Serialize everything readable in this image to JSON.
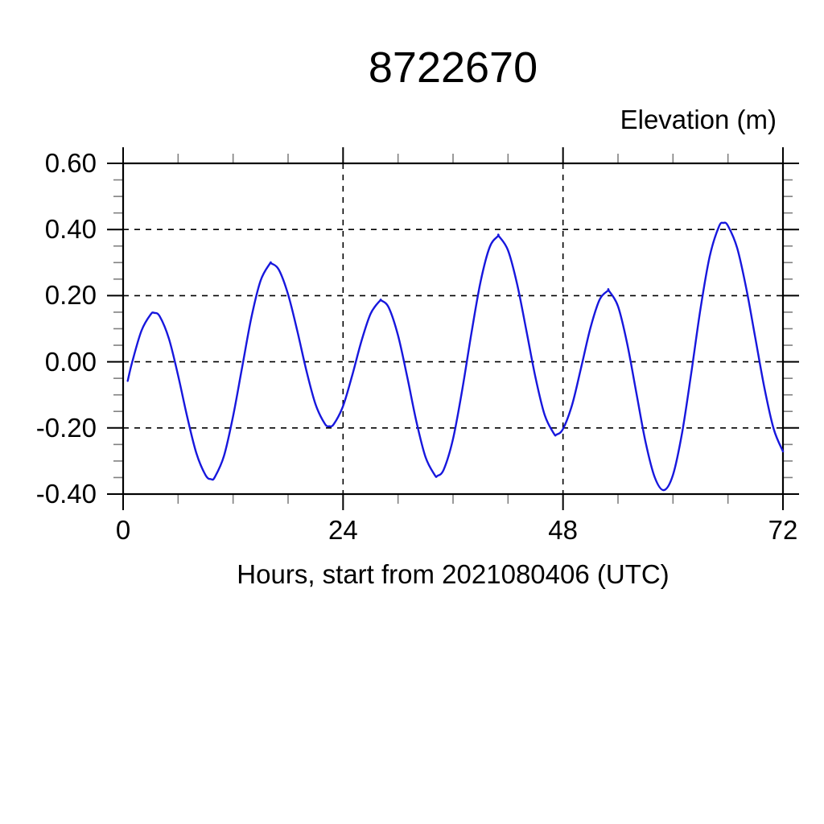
{
  "chart_data": {
    "type": "line",
    "title": "8722670",
    "y_axis_label": "Elevation (m)",
    "x_axis_label": "Hours, start from 2021080406 (UTC)",
    "xlim": [
      0,
      72
    ],
    "ylim": [
      -0.4,
      0.6
    ],
    "x_major_ticks": [
      0,
      24,
      48,
      72
    ],
    "x_tick_labels": [
      "0",
      "24",
      "48",
      "72"
    ],
    "x_minor_step": 6,
    "y_major_ticks": [
      0.6,
      0.4,
      0.2,
      0.0,
      -0.2,
      -0.4
    ],
    "y_tick_labels": [
      "0.60",
      "0.40",
      "0.20",
      "0.00",
      "-0.20",
      "-0.40"
    ],
    "y_minor_step": 0.05,
    "grid": "dashed lines at major ticks, full frame box, ticks point outward",
    "line_color": "#1717dd",
    "frame_color": "#000000",
    "background_color": "#ffffff",
    "series": [
      {
        "name": "elevation",
        "x": [
          0.5,
          1,
          2,
          3,
          3.4,
          4,
          5,
          6,
          7,
          8,
          9,
          9.6,
          10,
          11,
          12,
          13,
          14,
          15,
          16,
          16.2,
          17,
          18,
          19,
          20,
          21,
          22,
          22.5,
          23,
          24,
          25,
          26,
          27,
          28,
          28.2,
          29,
          30,
          31,
          32,
          33,
          34,
          34.3,
          35,
          36,
          37,
          38,
          39,
          40,
          40.9,
          41,
          42,
          43,
          44,
          45,
          46,
          47,
          47.3,
          48,
          49,
          50,
          51,
          52,
          52.9,
          53,
          54,
          55,
          56,
          57,
          58,
          59,
          60,
          61,
          62,
          63,
          64,
          65,
          65.5,
          66,
          67,
          68,
          69,
          70,
          71,
          72
        ],
        "y": [
          -0.058,
          0.0,
          0.094,
          0.143,
          0.148,
          0.137,
          0.07,
          -0.041,
          -0.167,
          -0.277,
          -0.343,
          -0.355,
          -0.349,
          -0.285,
          -0.164,
          -0.014,
          0.134,
          0.245,
          0.296,
          0.297,
          0.278,
          0.204,
          0.094,
          -0.027,
          -0.129,
          -0.187,
          -0.195,
          -0.188,
          -0.134,
          -0.041,
          0.062,
          0.145,
          0.184,
          0.185,
          0.163,
          0.079,
          -0.046,
          -0.18,
          -0.288,
          -0.342,
          -0.345,
          -0.325,
          -0.233,
          -0.085,
          0.086,
          0.242,
          0.347,
          0.38,
          0.38,
          0.337,
          0.234,
          0.095,
          -0.048,
          -0.161,
          -0.217,
          -0.22,
          -0.203,
          -0.129,
          -0.015,
          0.103,
          0.188,
          0.215,
          0.215,
          0.168,
          0.055,
          -0.094,
          -0.242,
          -0.349,
          -0.388,
          -0.342,
          -0.214,
          -0.033,
          0.16,
          0.318,
          0.408,
          0.42,
          0.411,
          0.344,
          0.222,
          0.07,
          -0.082,
          -0.204,
          -0.271
        ]
      }
    ],
    "extrema": {
      "peaks": [
        [
          3.4,
          0.148
        ],
        [
          16.2,
          0.297
        ],
        [
          28.2,
          0.185
        ],
        [
          40.9,
          0.38
        ],
        [
          52.9,
          0.215
        ],
        [
          65.5,
          0.42
        ]
      ],
      "troughs": [
        [
          9.6,
          -0.355
        ],
        [
          22.5,
          -0.195
        ],
        [
          34.3,
          -0.345
        ],
        [
          47.3,
          -0.22
        ],
        [
          59.0,
          -0.388
        ]
      ]
    }
  }
}
